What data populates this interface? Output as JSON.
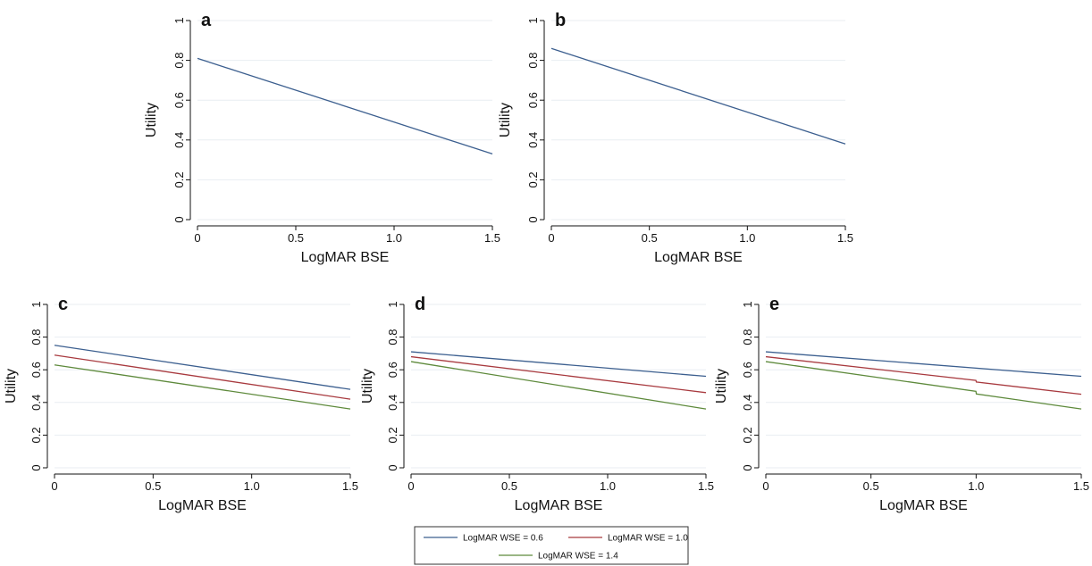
{
  "colors": {
    "wse_0_6": "#3c5f8f",
    "wse_1_0": "#a83a3f",
    "wse_1_4": "#5e8a3c",
    "grid": "#e9eef2",
    "axis": "#111111"
  },
  "legend": {
    "placement": "bottom-center",
    "items": [
      "LogMAR WSE = 0.6",
      "LogMAR WSE = 1.0",
      "LogMAR WSE = 1.4"
    ]
  },
  "chart_data": [
    {
      "type": "line",
      "panel": "a",
      "xlabel": "LogMAR BSE",
      "ylabel": "Utility",
      "xlim": [
        0,
        1.5
      ],
      "ylim": [
        0,
        1
      ],
      "xticks": [
        "0",
        "0.5",
        "1.0",
        "1.5"
      ],
      "yticks": [
        "0",
        "0.2",
        "0.4",
        "0.6",
        "0.8",
        "1"
      ],
      "grid": true,
      "series": [
        {
          "color_key": "wse_0_6",
          "x": [
            0,
            1.5
          ],
          "y": [
            0.81,
            0.33
          ]
        }
      ]
    },
    {
      "type": "line",
      "panel": "b",
      "xlabel": "LogMAR BSE",
      "ylabel": "Utility",
      "xlim": [
        0,
        1.5
      ],
      "ylim": [
        0,
        1
      ],
      "xticks": [
        "0",
        "0.5",
        "1.0",
        "1.5"
      ],
      "yticks": [
        "0",
        "0.2",
        "0.4",
        "0.6",
        "0.8",
        "1"
      ],
      "grid": true,
      "series": [
        {
          "color_key": "wse_0_6",
          "x": [
            0,
            1.5
          ],
          "y": [
            0.86,
            0.38
          ]
        }
      ]
    },
    {
      "type": "line",
      "panel": "c",
      "xlabel": "LogMAR BSE",
      "ylabel": "Utility",
      "xlim": [
        0,
        1.5
      ],
      "ylim": [
        0,
        1
      ],
      "xticks": [
        "0",
        "0.5",
        "1.0",
        "1.5"
      ],
      "yticks": [
        "0",
        "0.2",
        "0.4",
        "0.6",
        "0.8",
        "1"
      ],
      "grid": true,
      "series": [
        {
          "name": "LogMAR WSE = 0.6",
          "color_key": "wse_0_6",
          "x": [
            0,
            1.5
          ],
          "y": [
            0.75,
            0.48
          ]
        },
        {
          "name": "LogMAR WSE = 1.0",
          "color_key": "wse_1_0",
          "x": [
            0,
            1.5
          ],
          "y": [
            0.69,
            0.42
          ]
        },
        {
          "name": "LogMAR WSE = 1.4",
          "color_key": "wse_1_4",
          "x": [
            0,
            1.5
          ],
          "y": [
            0.63,
            0.36
          ]
        }
      ]
    },
    {
      "type": "line",
      "panel": "d",
      "xlabel": "LogMAR BSE",
      "ylabel": "Utility",
      "xlim": [
        0,
        1.5
      ],
      "ylim": [
        0,
        1
      ],
      "xticks": [
        "0",
        "0.5",
        "1.0",
        "1.5"
      ],
      "yticks": [
        "0",
        "0.2",
        "0.4",
        "0.6",
        "0.8",
        "1"
      ],
      "grid": true,
      "series": [
        {
          "name": "LogMAR WSE = 0.6",
          "color_key": "wse_0_6",
          "x": [
            0,
            1.5
          ],
          "y": [
            0.71,
            0.56
          ]
        },
        {
          "name": "LogMAR WSE = 1.0",
          "color_key": "wse_1_0",
          "x": [
            0,
            1.5
          ],
          "y": [
            0.68,
            0.46
          ]
        },
        {
          "name": "LogMAR WSE = 1.4",
          "color_key": "wse_1_4",
          "x": [
            0,
            1.5
          ],
          "y": [
            0.65,
            0.36
          ]
        }
      ]
    },
    {
      "type": "line",
      "panel": "e",
      "xlabel": "LogMAR BSE",
      "ylabel": "Utility",
      "xlim": [
        0,
        1.5
      ],
      "ylim": [
        0,
        1
      ],
      "xticks": [
        "0",
        "0.5",
        "1.0",
        "1.5"
      ],
      "yticks": [
        "0",
        "0.2",
        "0.4",
        "0.6",
        "0.8",
        "1"
      ],
      "grid": true,
      "series": [
        {
          "name": "LogMAR WSE = 0.6",
          "color_key": "wse_0_6",
          "x": [
            0,
            1.5
          ],
          "y": [
            0.71,
            0.56
          ]
        },
        {
          "name": "LogMAR WSE = 1.0",
          "color_key": "wse_1_0",
          "x": [
            0,
            0.999,
            1.001,
            1.5
          ],
          "y": [
            0.68,
            0.535,
            0.525,
            0.45
          ]
        },
        {
          "name": "LogMAR WSE = 1.4",
          "color_key": "wse_1_4",
          "x": [
            0,
            0.999,
            1.001,
            1.5
          ],
          "y": [
            0.65,
            0.468,
            0.452,
            0.36
          ]
        }
      ]
    }
  ]
}
